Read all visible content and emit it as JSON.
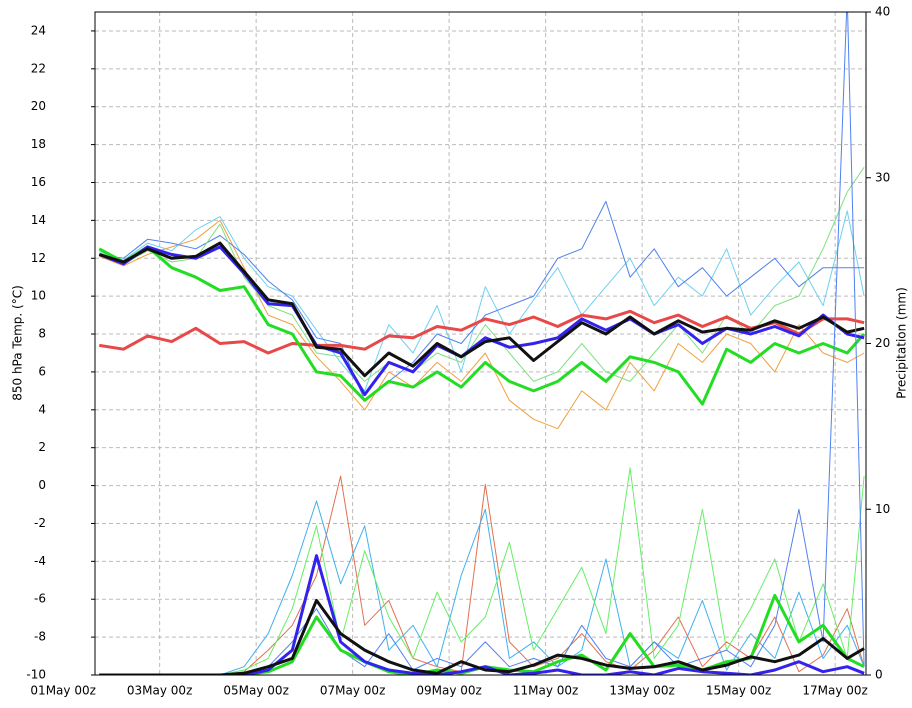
{
  "chart_data": {
    "type": "line",
    "y_label": "850 hPa Temp. (°C)",
    "y2_label": "Precipitation (mm)",
    "grid": true,
    "xlim": [
      0.66,
      16.64
    ],
    "xticks": [
      {
        "value": 0,
        "label": "01May 00z"
      },
      {
        "value": 2,
        "label": "03May 00z"
      },
      {
        "value": 4,
        "label": "05May 00z"
      },
      {
        "value": 6,
        "label": "07May 00z"
      },
      {
        "value": 8,
        "label": "09May 00z"
      },
      {
        "value": 10,
        "label": "11May 00z"
      },
      {
        "value": 12,
        "label": "13May 00z"
      },
      {
        "value": 14,
        "label": "15May 00z"
      },
      {
        "value": 16,
        "label": "17May 00z"
      }
    ],
    "ylim": [
      -10,
      25
    ],
    "yticks": [
      -10,
      -8,
      -6,
      -4,
      -2,
      0,
      2,
      4,
      6,
      8,
      10,
      12,
      14,
      16,
      18,
      20,
      22,
      24
    ],
    "y2lim": [
      0,
      40
    ],
    "y2ticks": [
      0,
      10,
      20,
      30,
      40
    ],
    "x": [
      0.75,
      1.25,
      1.75,
      2.25,
      2.75,
      3.25,
      3.75,
      4.25,
      4.75,
      5.25,
      5.75,
      6.25,
      6.75,
      7.25,
      7.75,
      8.25,
      8.75,
      9.25,
      9.75,
      10.25,
      10.75,
      11.25,
      11.75,
      12.25,
      12.75,
      13.25,
      13.75,
      14.25,
      14.75,
      15.25,
      15.75,
      16.25,
      16.6
    ],
    "series": [
      {
        "color": "#6fd0f0",
        "width": 1,
        "values": [
          12.3,
          11.9,
          12.8,
          12.4,
          13.5,
          14.2,
          12.0,
          10.5,
          10.0,
          8.2,
          6.5,
          5.0,
          8.5,
          7.0,
          9.5,
          6.0,
          10.5,
          8.0,
          9.8,
          11.5,
          9.0,
          10.5,
          12.0,
          9.5,
          11.0,
          10.0,
          12.5,
          9.0,
          10.5,
          11.8,
          9.5,
          14.5,
          10.0
        ]
      },
      {
        "color": "#f0a040",
        "width": 1,
        "values": [
          12.1,
          11.6,
          12.2,
          12.6,
          13.0,
          14.0,
          11.5,
          9.0,
          8.5,
          6.8,
          5.5,
          4.0,
          6.0,
          5.2,
          6.5,
          5.5,
          7.0,
          4.5,
          3.5,
          3.0,
          5.0,
          4.0,
          6.5,
          5.0,
          7.5,
          6.5,
          8.0,
          7.5,
          6.0,
          8.5,
          7.0,
          6.5,
          7.0
        ]
      },
      {
        "color": "#5080f0",
        "width": 1,
        "values": [
          12.2,
          12.0,
          13.0,
          12.8,
          12.5,
          13.2,
          12.2,
          10.8,
          9.8,
          7.8,
          7.5,
          4.5,
          5.5,
          6.5,
          8.0,
          7.5,
          9.0,
          9.5,
          10.0,
          12.0,
          12.5,
          15.0,
          11.0,
          12.5,
          10.5,
          11.5,
          10.0,
          11.0,
          12.0,
          10.5,
          11.5,
          11.5,
          11.5
        ]
      },
      {
        "color": "#80e080",
        "width": 1,
        "values": [
          12.4,
          11.7,
          12.4,
          11.8,
          12.0,
          13.8,
          11.0,
          9.5,
          9.0,
          7.0,
          6.8,
          5.5,
          6.5,
          6.0,
          7.0,
          6.5,
          8.5,
          7.0,
          5.5,
          6.0,
          7.5,
          6.0,
          5.5,
          7.0,
          8.5,
          7.0,
          9.0,
          8.0,
          9.5,
          10.0,
          12.5,
          15.5,
          16.8
        ]
      },
      {
        "color": "#e84848",
        "width": 3,
        "values": [
          7.4,
          7.2,
          7.9,
          7.6,
          8.3,
          7.5,
          7.6,
          7.0,
          7.5,
          7.4,
          7.4,
          7.2,
          7.9,
          7.8,
          8.4,
          8.2,
          8.8,
          8.5,
          8.9,
          8.4,
          9.0,
          8.8,
          9.2,
          8.6,
          9.0,
          8.4,
          8.9,
          8.3,
          8.6,
          8.0,
          8.8,
          8.8,
          8.6
        ]
      },
      {
        "color": "#22dd22",
        "width": 3,
        "values": [
          12.5,
          11.8,
          12.6,
          11.5,
          11.0,
          10.3,
          10.5,
          8.5,
          8.0,
          6.0,
          5.8,
          4.5,
          5.5,
          5.2,
          6.0,
          5.2,
          6.5,
          5.5,
          5.0,
          5.5,
          6.5,
          5.5,
          6.8,
          6.5,
          6.0,
          4.3,
          7.2,
          6.5,
          7.5,
          7.0,
          7.5,
          7.0,
          8.0
        ]
      },
      {
        "color": "#3322ee",
        "width": 3,
        "values": [
          12.2,
          11.7,
          12.6,
          12.2,
          12.0,
          12.6,
          11.2,
          9.6,
          9.5,
          7.4,
          7.0,
          4.8,
          6.5,
          6.0,
          7.4,
          6.8,
          7.8,
          7.3,
          7.5,
          7.8,
          8.8,
          8.2,
          8.8,
          8.0,
          8.5,
          7.5,
          8.3,
          8.0,
          8.4,
          7.9,
          9.0,
          8.0,
          7.8
        ]
      },
      {
        "color": "#111111",
        "width": 3,
        "values": [
          12.2,
          11.8,
          12.5,
          12.0,
          12.1,
          12.8,
          11.3,
          9.8,
          9.6,
          7.3,
          7.2,
          5.8,
          7.0,
          6.3,
          7.5,
          6.8,
          7.6,
          7.8,
          6.6,
          7.6,
          8.6,
          8.0,
          8.9,
          8.0,
          8.7,
          8.1,
          8.3,
          8.2,
          8.7,
          8.3,
          8.9,
          8.1,
          8.3
        ]
      },
      {
        "axis": "y2",
        "color": "#e07050",
        "width": 1,
        "values": [
          0,
          0,
          0,
          0,
          0,
          0,
          0.2,
          1.5,
          3.0,
          6.0,
          12.0,
          3.0,
          4.5,
          1.0,
          0.5,
          0.2,
          11.5,
          2.0,
          0.5,
          1.0,
          2.5,
          0.8,
          0.3,
          1.5,
          3.5,
          0.5,
          2.0,
          1.0,
          3.5,
          0.2,
          1.2,
          4.0,
          0.5
        ]
      },
      {
        "axis": "y2",
        "color": "#40b0f0",
        "width": 1,
        "values": [
          0,
          0,
          0,
          0,
          0,
          0,
          0.5,
          2.5,
          6.0,
          10.5,
          5.5,
          9.0,
          1.5,
          3.0,
          0.5,
          6.0,
          10.0,
          1.0,
          2.0,
          0.5,
          1.5,
          7.0,
          0.5,
          2.0,
          1.0,
          4.5,
          0.3,
          2.5,
          1.0,
          5.0,
          1.0,
          3.0,
          0.5
        ]
      },
      {
        "axis": "y2",
        "color": "#66ee66",
        "width": 1,
        "values": [
          0,
          0,
          0,
          0,
          0,
          0,
          0.3,
          1.0,
          4.0,
          9.0,
          2.0,
          7.5,
          3.5,
          1.0,
          5.0,
          2.0,
          3.5,
          8.0,
          1.5,
          4.0,
          6.5,
          2.5,
          12.5,
          1.0,
          3.0,
          10.0,
          1.5,
          4.0,
          7.0,
          2.0,
          5.5,
          1.0,
          12.0
        ]
      },
      {
        "axis": "y2",
        "color": "#5080f0",
        "width": 1,
        "values": [
          0,
          0,
          0,
          0,
          0,
          0,
          0,
          0.5,
          2.0,
          4.0,
          1.5,
          0.5,
          2.5,
          0.3,
          1.0,
          0.5,
          2.0,
          0.5,
          1.0,
          0.5,
          3.0,
          1.0,
          0.5,
          2.0,
          0.5,
          1.0,
          1.5,
          0.5,
          3.0,
          10.0,
          2.0,
          41.0,
          0.5
        ]
      },
      {
        "axis": "y2",
        "color": "#22dd22",
        "width": 3,
        "values": [
          0,
          0,
          0,
          0,
          0,
          0,
          0,
          0.2,
          0.8,
          3.5,
          1.5,
          0.8,
          0.2,
          0,
          0.3,
          0.1,
          0.5,
          0.3,
          0.2,
          0.8,
          1.2,
          0.3,
          2.5,
          0.5,
          0.6,
          0.3,
          0.8,
          1.0,
          4.8,
          2.0,
          3.0,
          1.0,
          0.5
        ]
      },
      {
        "axis": "y2",
        "color": "#3322ee",
        "width": 3,
        "values": [
          0,
          0,
          0,
          0,
          0,
          0,
          0,
          0.3,
          1.5,
          7.2,
          2.0,
          0.8,
          0.3,
          0.1,
          0,
          0.2,
          0.5,
          0,
          0.1,
          0.3,
          0,
          0,
          0.2,
          0,
          0.4,
          0.2,
          0.1,
          0,
          0.3,
          0.8,
          0.2,
          0.5,
          0.1
        ]
      },
      {
        "axis": "y2",
        "color": "#111111",
        "width": 3,
        "values": [
          0,
          0,
          0,
          0,
          0,
          0,
          0.1,
          0.5,
          1.0,
          4.5,
          2.5,
          1.5,
          0.8,
          0.3,
          0.1,
          0.8,
          0.3,
          0.2,
          0.6,
          1.2,
          1.0,
          0.6,
          0.4,
          0.5,
          0.8,
          0.3,
          0.6,
          1.1,
          0.8,
          1.2,
          2.2,
          1.0,
          1.6
        ]
      }
    ]
  }
}
